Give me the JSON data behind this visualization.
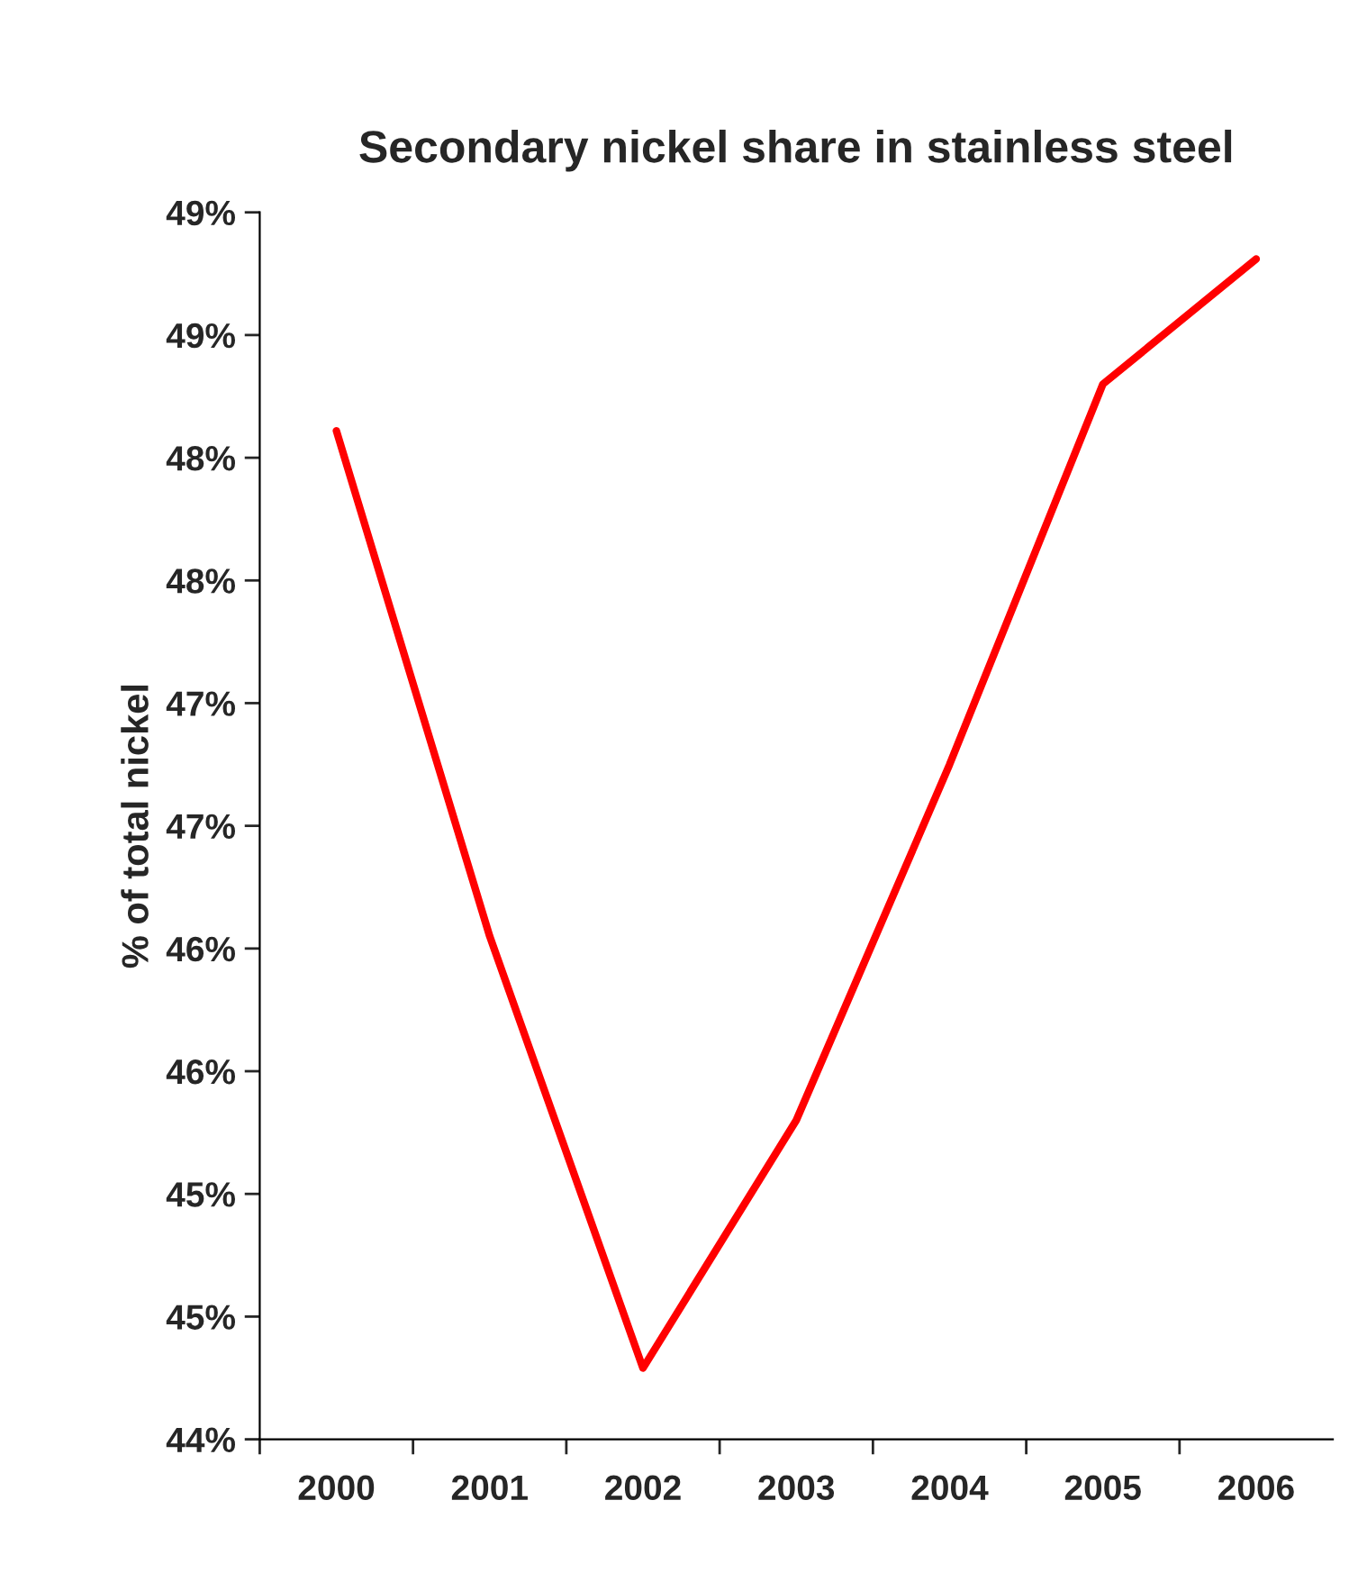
{
  "chart_data": {
    "type": "line",
    "title": "Secondary nickel share in stainless steel",
    "ylabel": "% of total nickel",
    "categories": [
      "2000",
      "2001",
      "2002",
      "2003",
      "2004",
      "2005",
      "2006"
    ],
    "series": [
      {
        "color": "#ff0000",
        "values": [
          48.11,
          46.05,
          44.29,
          45.3,
          46.75,
          48.3,
          48.81
        ]
      }
    ],
    "ylim": [
      44,
      49
    ],
    "yticks": [
      {
        "value": 44,
        "label": "44%"
      },
      {
        "value": 44.5,
        "label": "45%"
      },
      {
        "value": 45,
        "label": "45%"
      },
      {
        "value": 45.5,
        "label": "46%"
      },
      {
        "value": 46,
        "label": "46%"
      },
      {
        "value": 46.5,
        "label": "47%"
      },
      {
        "value": 47,
        "label": "47%"
      },
      {
        "value": 47.5,
        "label": "48%"
      },
      {
        "value": 48,
        "label": "48%"
      },
      {
        "value": 48.5,
        "label": "49%"
      },
      {
        "value": 49,
        "label": "49%"
      }
    ],
    "grid": false,
    "legend": false,
    "marker": "none",
    "line_style": "solid"
  }
}
